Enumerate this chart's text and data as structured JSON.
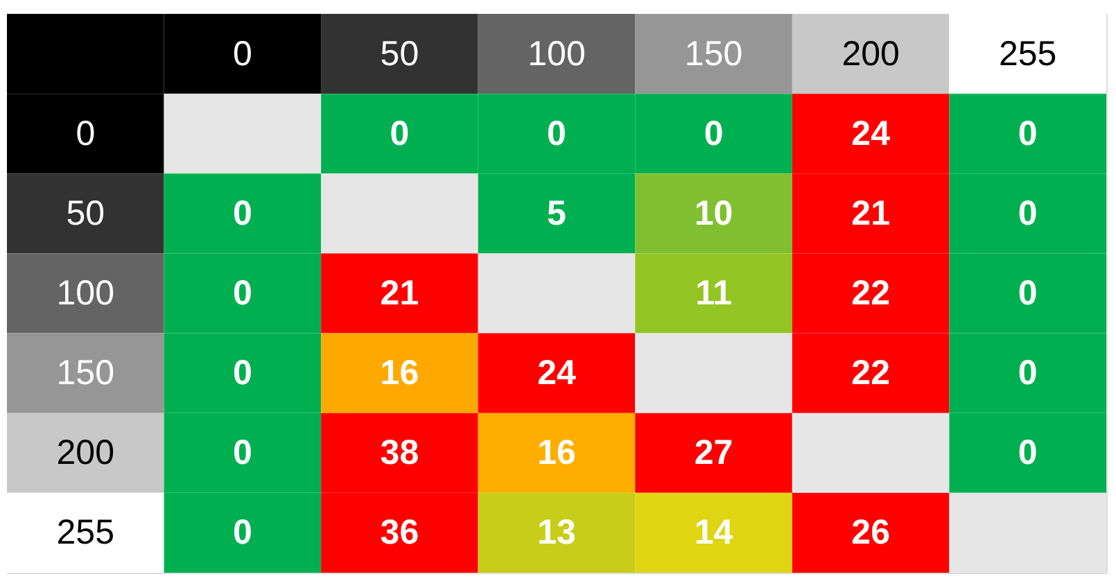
{
  "chart_data": {
    "type": "heatmap",
    "data_labels": true,
    "categories": [
      "0",
      "50",
      "100",
      "150",
      "200",
      "255"
    ],
    "y_categories": [
      "0",
      "50",
      "100",
      "150",
      "200",
      "255"
    ],
    "cells": [
      [
        null,
        0,
        0,
        0,
        24,
        0
      ],
      [
        0,
        null,
        5,
        10,
        21,
        0
      ],
      [
        0,
        21,
        null,
        11,
        22,
        0
      ],
      [
        0,
        16,
        24,
        null,
        22,
        0
      ],
      [
        0,
        38,
        16,
        27,
        null,
        0
      ],
      [
        0,
        36,
        13,
        14,
        26,
        null
      ]
    ],
    "colors": [
      [
        "#e6e6e6",
        "#00b050",
        "#00b050",
        "#00b050",
        "#ff0000",
        "#00b050"
      ],
      [
        "#00b050",
        "#e6e6e6",
        "#00b050",
        "#80c030",
        "#ff0000",
        "#00b050"
      ],
      [
        "#00b050",
        "#ff0000",
        "#e6e6e6",
        "#92c523",
        "#ff0000",
        "#00b050"
      ],
      [
        "#00b050",
        "#ffa800",
        "#ff0000",
        "#e6e6e6",
        "#ff0000",
        "#00b050"
      ],
      [
        "#00b050",
        "#ff0000",
        "#ffae00",
        "#ff0000",
        "#e6e6e6",
        "#00b050"
      ],
      [
        "#00b050",
        "#ff0000",
        "#c8cd1a",
        "#e0d512",
        "#ff0000",
        "#e6e6e6"
      ]
    ]
  }
}
